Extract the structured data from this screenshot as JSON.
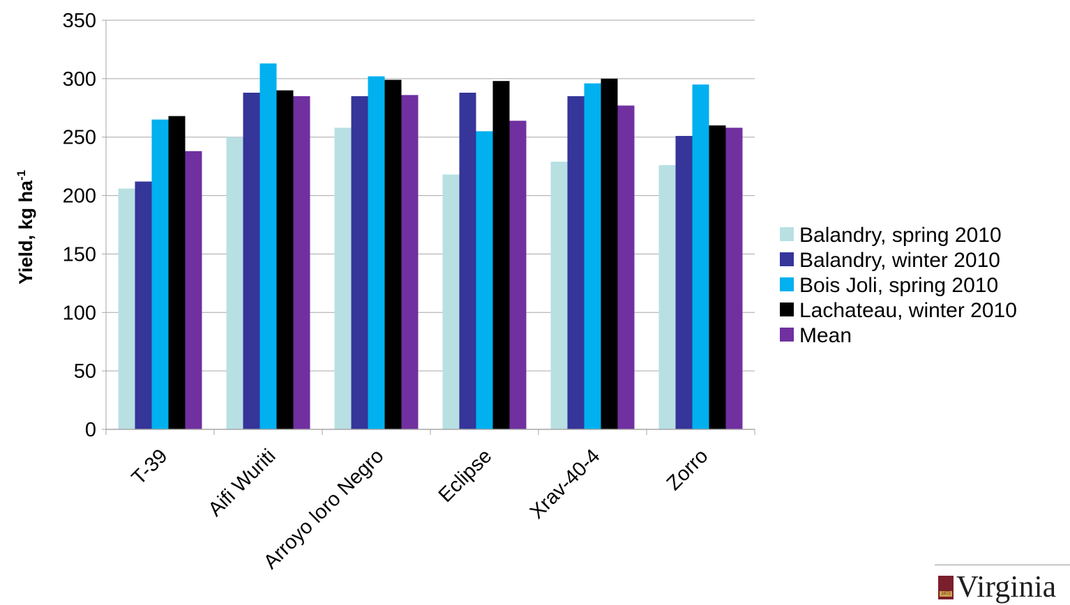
{
  "chart_data": {
    "type": "bar",
    "title": "",
    "xlabel": "",
    "ylabel_main": "Yield, kg ha",
    "ylabel_sup": "-1",
    "ylim": [
      0,
      350
    ],
    "yticks": [
      0,
      50,
      100,
      150,
      200,
      250,
      300,
      350
    ],
    "grid": true,
    "legend_position": "right",
    "categories": [
      "T-39",
      "Aifi Wuriti",
      "Arroyo loro Negro",
      "Eclipse",
      "Xrav-40-4",
      "Zorro"
    ],
    "series": [
      {
        "name": "Balandry, spring 2010",
        "color": "#b8e0e3",
        "values": [
          206,
          250,
          258,
          218,
          229,
          226
        ]
      },
      {
        "name": "Balandry, winter 2010",
        "color": "#35359a",
        "values": [
          212,
          288,
          285,
          288,
          285,
          251
        ]
      },
      {
        "name": "Bois Joli, spring 2010",
        "color": "#00b0ef",
        "values": [
          265,
          313,
          302,
          255,
          296,
          295
        ]
      },
      {
        "name": "Lachateau, winter 2010",
        "color": "#000000",
        "values": [
          268,
          290,
          299,
          298,
          300,
          260
        ]
      },
      {
        "name": "Mean",
        "color": "#7030a0",
        "values": [
          238,
          285,
          286,
          264,
          277,
          258
        ]
      }
    ]
  },
  "logo": {
    "text": "Virginia",
    "seal_year": "1872",
    "seal_color": "#7a1f2b"
  }
}
